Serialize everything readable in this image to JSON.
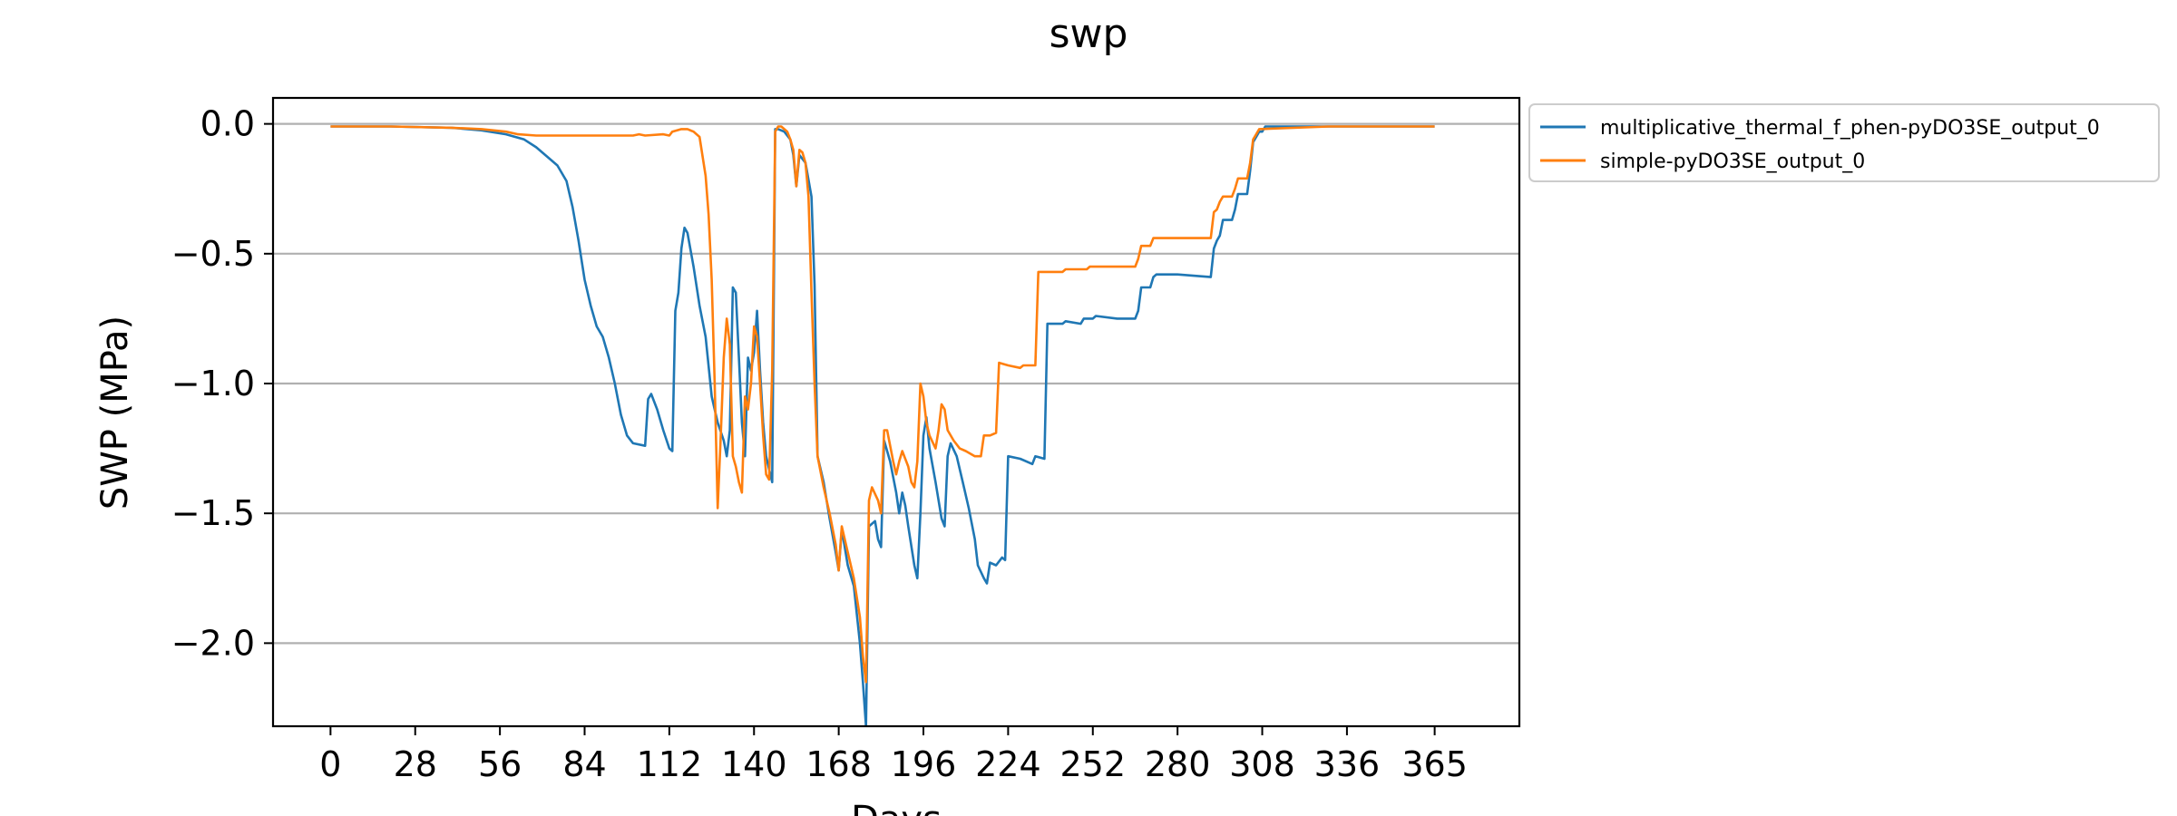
{
  "chart_data": {
    "type": "line",
    "title": "swp",
    "xlabel": "Days",
    "ylabel": "SWP (MPa)",
    "xlim": [
      -19,
      393
    ],
    "ylim": [
      -2.32,
      0.1
    ],
    "x_ticks": [
      0,
      28,
      56,
      84,
      112,
      140,
      168,
      196,
      224,
      252,
      280,
      308,
      336,
      365
    ],
    "y_ticks": [
      0.0,
      -0.5,
      -1.0,
      -1.5,
      -2.0
    ],
    "y_tick_labels": [
      "0.0",
      "−0.5",
      "−1.0",
      "−1.5",
      "−2.0"
    ],
    "grid": "horizontal",
    "legend_placement": "outside-top-right",
    "series": [
      {
        "name": "multiplicative_thermal_f_phen-pyDO3SE_output_0",
        "color": "#1f77b4",
        "points": [
          [
            0,
            -0.01
          ],
          [
            20,
            -0.01
          ],
          [
            40,
            -0.015
          ],
          [
            50,
            -0.025
          ],
          [
            58,
            -0.04
          ],
          [
            64,
            -0.06
          ],
          [
            68,
            -0.09
          ],
          [
            72,
            -0.13
          ],
          [
            75,
            -0.16
          ],
          [
            78,
            -0.22
          ],
          [
            80,
            -0.32
          ],
          [
            82,
            -0.45
          ],
          [
            84,
            -0.6
          ],
          [
            86,
            -0.7
          ],
          [
            88,
            -0.78
          ],
          [
            90,
            -0.82
          ],
          [
            92,
            -0.9
          ],
          [
            94,
            -1.0
          ],
          [
            96,
            -1.12
          ],
          [
            98,
            -1.2
          ],
          [
            100,
            -1.23
          ],
          [
            104,
            -1.24
          ],
          [
            105,
            -1.06
          ],
          [
            106,
            -1.04
          ],
          [
            108,
            -1.1
          ],
          [
            110,
            -1.18
          ],
          [
            112,
            -1.25
          ],
          [
            113,
            -1.26
          ],
          [
            114,
            -0.72
          ],
          [
            115,
            -0.65
          ],
          [
            116,
            -0.48
          ],
          [
            117,
            -0.4
          ],
          [
            118,
            -0.42
          ],
          [
            120,
            -0.55
          ],
          [
            122,
            -0.7
          ],
          [
            124,
            -0.82
          ],
          [
            126,
            -1.05
          ],
          [
            128,
            -1.15
          ],
          [
            130,
            -1.22
          ],
          [
            131,
            -1.28
          ],
          [
            132,
            -1.18
          ],
          [
            133,
            -0.63
          ],
          [
            134,
            -0.65
          ],
          [
            135,
            -0.9
          ],
          [
            136,
            -1.15
          ],
          [
            137,
            -1.28
          ],
          [
            138,
            -0.9
          ],
          [
            139,
            -0.95
          ],
          [
            140,
            -0.88
          ],
          [
            141,
            -0.72
          ],
          [
            142,
            -0.95
          ],
          [
            143,
            -1.15
          ],
          [
            144,
            -1.28
          ],
          [
            145,
            -1.33
          ],
          [
            146,
            -1.38
          ],
          [
            147,
            -0.02
          ],
          [
            148,
            -0.02
          ],
          [
            150,
            -0.03
          ],
          [
            152,
            -0.06
          ],
          [
            153,
            -0.12
          ],
          [
            154,
            -0.24
          ],
          [
            155,
            -0.12
          ],
          [
            157,
            -0.15
          ],
          [
            159,
            -0.28
          ],
          [
            160,
            -0.62
          ],
          [
            161,
            -1.28
          ],
          [
            163,
            -1.38
          ],
          [
            165,
            -1.52
          ],
          [
            167,
            -1.65
          ],
          [
            168,
            -1.72
          ],
          [
            169,
            -1.56
          ],
          [
            171,
            -1.7
          ],
          [
            173,
            -1.78
          ],
          [
            175,
            -2.0
          ],
          [
            176,
            -2.15
          ],
          [
            177,
            -2.32
          ],
          [
            178,
            -1.55
          ],
          [
            180,
            -1.53
          ],
          [
            181,
            -1.6
          ],
          [
            182,
            -1.63
          ],
          [
            183,
            -1.22
          ],
          [
            185,
            -1.3
          ],
          [
            187,
            -1.42
          ],
          [
            188,
            -1.5
          ],
          [
            189,
            -1.42
          ],
          [
            190,
            -1.47
          ],
          [
            191,
            -1.55
          ],
          [
            193,
            -1.7
          ],
          [
            194,
            -1.75
          ],
          [
            195,
            -1.5
          ],
          [
            196,
            -1.2
          ],
          [
            197,
            -1.13
          ],
          [
            198,
            -1.25
          ],
          [
            200,
            -1.38
          ],
          [
            202,
            -1.52
          ],
          [
            203,
            -1.55
          ],
          [
            204,
            -1.28
          ],
          [
            205,
            -1.23
          ],
          [
            207,
            -1.28
          ],
          [
            209,
            -1.38
          ],
          [
            211,
            -1.48
          ],
          [
            213,
            -1.6
          ],
          [
            214,
            -1.7
          ],
          [
            216,
            -1.75
          ],
          [
            217,
            -1.77
          ],
          [
            218,
            -1.69
          ],
          [
            220,
            -1.7
          ],
          [
            222,
            -1.67
          ],
          [
            223,
            -1.68
          ],
          [
            224,
            -1.28
          ],
          [
            228,
            -1.29
          ],
          [
            232,
            -1.31
          ],
          [
            233,
            -1.28
          ],
          [
            236,
            -1.29
          ],
          [
            237,
            -0.77
          ],
          [
            242,
            -0.77
          ],
          [
            243,
            -0.76
          ],
          [
            248,
            -0.77
          ],
          [
            249,
            -0.75
          ],
          [
            252,
            -0.75
          ],
          [
            253,
            -0.74
          ],
          [
            260,
            -0.75
          ],
          [
            266,
            -0.75
          ],
          [
            267,
            -0.72
          ],
          [
            268,
            -0.63
          ],
          [
            271,
            -0.63
          ],
          [
            272,
            -0.59
          ],
          [
            273,
            -0.58
          ],
          [
            276,
            -0.58
          ],
          [
            280,
            -0.58
          ],
          [
            291,
            -0.59
          ],
          [
            292,
            -0.48
          ],
          [
            293,
            -0.45
          ],
          [
            294,
            -0.43
          ],
          [
            295,
            -0.37
          ],
          [
            298,
            -0.37
          ],
          [
            299,
            -0.33
          ],
          [
            300,
            -0.27
          ],
          [
            303,
            -0.27
          ],
          [
            304,
            -0.18
          ],
          [
            305,
            -0.07
          ],
          [
            306,
            -0.05
          ],
          [
            307,
            -0.03
          ],
          [
            308,
            -0.03
          ],
          [
            309,
            -0.01
          ],
          [
            330,
            -0.01
          ],
          [
            345,
            -0.01
          ],
          [
            365,
            -0.01
          ]
        ]
      },
      {
        "name": "simple-pyDO3SE_output_0",
        "color": "#ff7f0e",
        "points": [
          [
            0,
            -0.01
          ],
          [
            20,
            -0.01
          ],
          [
            40,
            -0.015
          ],
          [
            50,
            -0.02
          ],
          [
            58,
            -0.03
          ],
          [
            62,
            -0.04
          ],
          [
            68,
            -0.045
          ],
          [
            90,
            -0.045
          ],
          [
            100,
            -0.045
          ],
          [
            102,
            -0.04
          ],
          [
            104,
            -0.045
          ],
          [
            110,
            -0.04
          ],
          [
            112,
            -0.045
          ],
          [
            113,
            -0.03
          ],
          [
            116,
            -0.02
          ],
          [
            118,
            -0.02
          ],
          [
            120,
            -0.03
          ],
          [
            122,
            -0.05
          ],
          [
            124,
            -0.2
          ],
          [
            125,
            -0.35
          ],
          [
            126,
            -0.6
          ],
          [
            127,
            -1.0
          ],
          [
            128,
            -1.48
          ],
          [
            129,
            -1.2
          ],
          [
            130,
            -0.9
          ],
          [
            131,
            -0.75
          ],
          [
            132,
            -0.85
          ],
          [
            133,
            -1.28
          ],
          [
            134,
            -1.32
          ],
          [
            135,
            -1.38
          ],
          [
            136,
            -1.42
          ],
          [
            137,
            -1.05
          ],
          [
            138,
            -1.1
          ],
          [
            139,
            -1.0
          ],
          [
            140,
            -0.78
          ],
          [
            141,
            -0.82
          ],
          [
            142,
            -1.0
          ],
          [
            143,
            -1.2
          ],
          [
            144,
            -1.35
          ],
          [
            145,
            -1.37
          ],
          [
            146,
            -0.95
          ],
          [
            147,
            -0.03
          ],
          [
            148,
            -0.01
          ],
          [
            149,
            -0.01
          ],
          [
            150,
            -0.02
          ],
          [
            151,
            -0.03
          ],
          [
            152,
            -0.06
          ],
          [
            153,
            -0.1
          ],
          [
            154,
            -0.24
          ],
          [
            155,
            -0.1
          ],
          [
            156,
            -0.11
          ],
          [
            157,
            -0.15
          ],
          [
            158,
            -0.28
          ],
          [
            159,
            -0.65
          ],
          [
            160,
            -1.0
          ],
          [
            161,
            -1.28
          ],
          [
            163,
            -1.4
          ],
          [
            165,
            -1.5
          ],
          [
            167,
            -1.62
          ],
          [
            168,
            -1.72
          ],
          [
            169,
            -1.55
          ],
          [
            171,
            -1.65
          ],
          [
            173,
            -1.75
          ],
          [
            175,
            -1.9
          ],
          [
            176,
            -2.05
          ],
          [
            177,
            -2.15
          ],
          [
            178,
            -1.45
          ],
          [
            179,
            -1.4
          ],
          [
            181,
            -1.45
          ],
          [
            182,
            -1.5
          ],
          [
            183,
            -1.18
          ],
          [
            184,
            -1.18
          ],
          [
            186,
            -1.3
          ],
          [
            187,
            -1.35
          ],
          [
            188,
            -1.3
          ],
          [
            189,
            -1.26
          ],
          [
            191,
            -1.32
          ],
          [
            192,
            -1.38
          ],
          [
            193,
            -1.4
          ],
          [
            194,
            -1.3
          ],
          [
            195,
            -1.0
          ],
          [
            196,
            -1.05
          ],
          [
            197,
            -1.15
          ],
          [
            198,
            -1.2
          ],
          [
            200,
            -1.25
          ],
          [
            201,
            -1.18
          ],
          [
            202,
            -1.08
          ],
          [
            203,
            -1.1
          ],
          [
            204,
            -1.18
          ],
          [
            206,
            -1.22
          ],
          [
            208,
            -1.25
          ],
          [
            210,
            -1.26
          ],
          [
            213,
            -1.28
          ],
          [
            215,
            -1.28
          ],
          [
            216,
            -1.2
          ],
          [
            218,
            -1.2
          ],
          [
            220,
            -1.19
          ],
          [
            221,
            -0.92
          ],
          [
            224,
            -0.93
          ],
          [
            228,
            -0.94
          ],
          [
            229,
            -0.93
          ],
          [
            233,
            -0.93
          ],
          [
            234,
            -0.57
          ],
          [
            238,
            -0.57
          ],
          [
            242,
            -0.57
          ],
          [
            243,
            -0.56
          ],
          [
            250,
            -0.56
          ],
          [
            251,
            -0.55
          ],
          [
            256,
            -0.55
          ],
          [
            260,
            -0.55
          ],
          [
            266,
            -0.55
          ],
          [
            267,
            -0.52
          ],
          [
            268,
            -0.47
          ],
          [
            271,
            -0.47
          ],
          [
            272,
            -0.44
          ],
          [
            274,
            -0.44
          ],
          [
            280,
            -0.44
          ],
          [
            288,
            -0.44
          ],
          [
            291,
            -0.44
          ],
          [
            292,
            -0.34
          ],
          [
            293,
            -0.33
          ],
          [
            294,
            -0.3
          ],
          [
            295,
            -0.28
          ],
          [
            298,
            -0.28
          ],
          [
            299,
            -0.25
          ],
          [
            300,
            -0.21
          ],
          [
            303,
            -0.21
          ],
          [
            304,
            -0.15
          ],
          [
            305,
            -0.06
          ],
          [
            306,
            -0.04
          ],
          [
            307,
            -0.02
          ],
          [
            330,
            -0.01
          ],
          [
            345,
            -0.01
          ],
          [
            365,
            -0.01
          ]
        ]
      }
    ]
  }
}
